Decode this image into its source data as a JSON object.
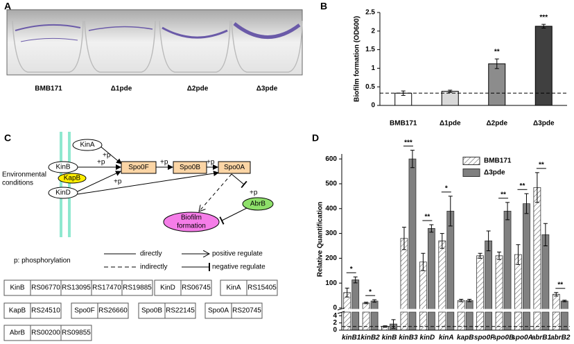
{
  "panel_a": {
    "label": "A",
    "captions": [
      "BMB171",
      "Δ1pde",
      "Δ2pde",
      "Δ3pde"
    ]
  },
  "chart_data": [
    {
      "type": "bar",
      "label": "B",
      "ylabel": "Biofilm formation (OD600)",
      "categories": [
        "BMB171",
        "Δ1pde",
        "Δ2pde",
        "Δ3pde"
      ],
      "values": [
        0.33,
        0.38,
        1.12,
        2.13
      ],
      "errors": [
        0.06,
        0.03,
        0.13,
        0.05
      ],
      "colors": [
        "#ffffff",
        "#d9d9d9",
        "#8c8c8c",
        "#404040"
      ],
      "annotations": [
        null,
        null,
        "**",
        "***"
      ],
      "reference_line": 0.33,
      "ylim": [
        0,
        2.5
      ],
      "yticks": [
        0,
        0.5,
        1,
        1.5,
        2,
        2.5
      ]
    },
    {
      "type": "grouped_bar_broken",
      "label": "D",
      "ylabel": "Relative Quantification",
      "categories": [
        "kinB1",
        "kinB2",
        "kinB",
        "kinB3",
        "kinD",
        "kinA",
        "kapB",
        "spo0F",
        "spo0B",
        "spo0A",
        "abrB1",
        "abrB2"
      ],
      "series": [
        {
          "name": "BMB171",
          "color": "#ffffff",
          "hatch": true,
          "values": [
            62,
            20,
            1,
            280,
            185,
            270,
            30,
            210,
            210,
            215,
            485,
            55
          ],
          "errors": [
            18,
            3,
            0.2,
            45,
            35,
            30,
            5,
            10,
            15,
            40,
            60,
            7
          ]
        },
        {
          "name": "Δ3pde",
          "color": "#808080",
          "hatch": false,
          "values": [
            113,
            28,
            1.7,
            600,
            320,
            390,
            30,
            270,
            390,
            420,
            295,
            28
          ],
          "errors": [
            12,
            5,
            1.2,
            35,
            15,
            60,
            5,
            40,
            35,
            40,
            45,
            3
          ]
        }
      ],
      "annotations": [
        "*",
        "*",
        null,
        "***",
        "**",
        "*",
        null,
        null,
        "**",
        "**",
        "**",
        "**"
      ],
      "reference_line": 1,
      "ylim": [
        0,
        620
      ],
      "yticks": [
        0,
        100,
        200,
        300,
        400,
        500,
        600
      ],
      "ylim_lower": [
        0,
        5
      ],
      "yticks_lower": [
        0,
        2,
        4
      ]
    }
  ],
  "diagram": {
    "label": "C",
    "environment": [
      "Environmental",
      "conditions"
    ],
    "nodes": [
      "KinA",
      "KinB",
      "KapB",
      "KinD",
      "Spo0F",
      "Spo0B",
      "Spo0A",
      "AbrB"
    ],
    "biofilm": [
      "Biofilm",
      "formation"
    ],
    "phospho": "+p",
    "legend": {
      "p": "p: phosphorylation",
      "directly": "directly",
      "indirectly": "indirectly",
      "positive": "positive regulate",
      "negative": "negative regulate"
    }
  },
  "gene_table": [
    [
      "KinB",
      "RS06770",
      "RS13095",
      "RS17470",
      "RS19885"
    ],
    [
      "KinD",
      "RS06745"
    ],
    [
      "KinA",
      "RS15405"
    ],
    [
      "KapB",
      "RS24510"
    ],
    [
      "Spo0F",
      "RS26660"
    ],
    [
      "Spo0B",
      "RS22145"
    ],
    [
      "Spo0A",
      "RS20745"
    ],
    [
      "AbrB",
      "RS00200",
      "RS09855"
    ]
  ]
}
